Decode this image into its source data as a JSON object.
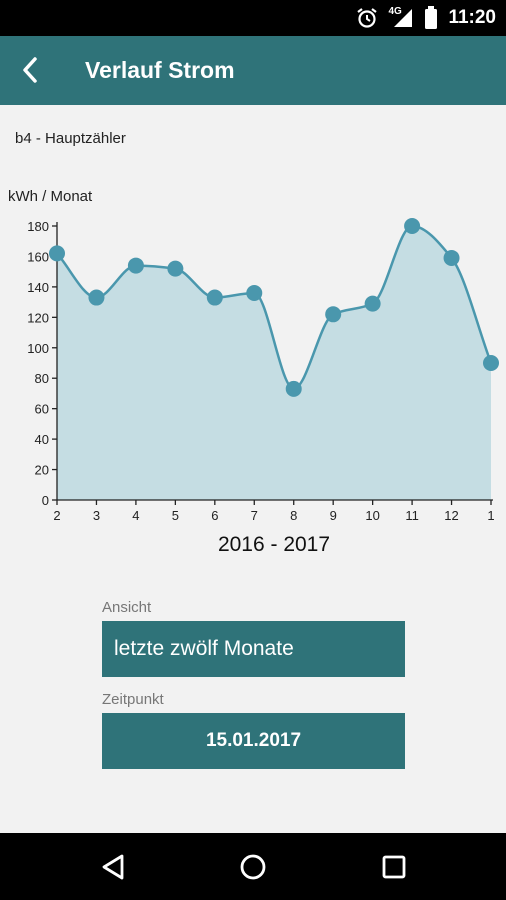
{
  "status_bar": {
    "time": "11:20",
    "network_label": "4G",
    "icons": [
      "alarm-icon",
      "signal-icon",
      "battery-icon"
    ]
  },
  "app_bar": {
    "title": "Verlauf Strom",
    "back_icon": "chevron-left-icon"
  },
  "meter_name": "b4 - Hauptzähler",
  "unit_label": "kWh / Monat",
  "chart_data": {
    "type": "area",
    "categories": [
      "2",
      "3",
      "4",
      "5",
      "6",
      "7",
      "8",
      "9",
      "10",
      "11",
      "12",
      "1"
    ],
    "values": [
      162,
      133,
      154,
      152,
      133,
      136,
      73,
      122,
      129,
      180,
      159,
      90
    ],
    "ylabel": "kWh / Monat",
    "xlabel": "2016 - 2017",
    "ylim": [
      0,
      180
    ],
    "yticks": [
      0,
      20,
      40,
      60,
      80,
      100,
      120,
      140,
      160,
      180
    ],
    "grid": false,
    "colors": {
      "line": "#4a97ad",
      "fill": "#c5dde3",
      "marker": "#4a97ad",
      "axis": "#222222"
    }
  },
  "controls": {
    "view_label": "Ansicht",
    "view_value": "letzte zwölf Monate",
    "date_label": "Zeitpunkt",
    "date_value": "15.01.2017"
  },
  "nav_bar": {
    "icons": [
      "back-triangle-icon",
      "home-circle-icon",
      "recents-square-icon"
    ]
  },
  "colors": {
    "primary": "#2f7379",
    "background": "#f2f2f2"
  }
}
